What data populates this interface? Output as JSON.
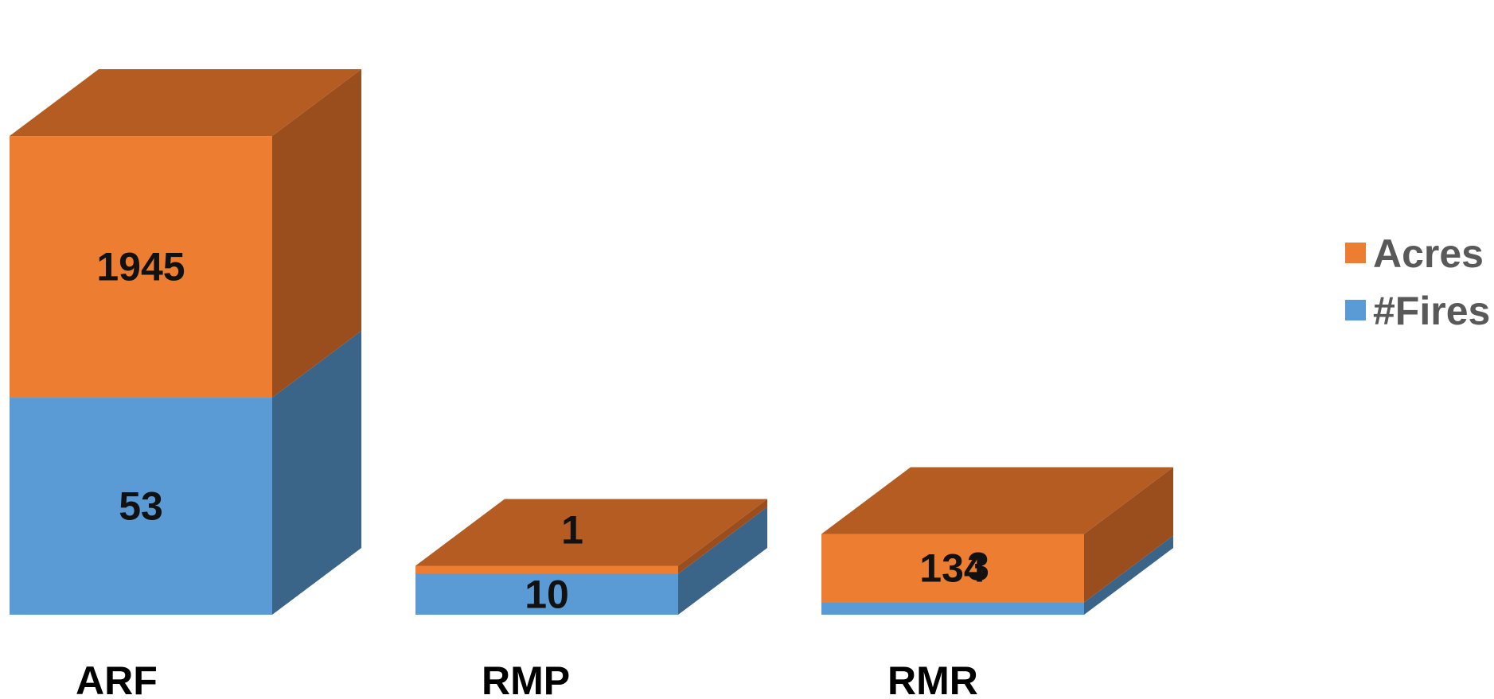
{
  "chart_data": {
    "type": "bar",
    "stacked": true,
    "three_d": true,
    "categories": [
      "ARF",
      "RMP",
      "RMR"
    ],
    "series": [
      {
        "name": "#Fires",
        "values": [
          53,
          10,
          3
        ],
        "labels": [
          "53",
          "10",
          "3"
        ],
        "color": "#5B9BD5",
        "side_color": "#3B6489",
        "top_color": "#4A7FB0"
      },
      {
        "name": "Acres",
        "values": [
          1945,
          1,
          134
        ],
        "labels": [
          "1945",
          "1",
          "134"
        ],
        "color": "#ED7D31",
        "side_color": "#9A4E1E",
        "top_color": "#B45C22"
      }
    ],
    "legend": {
      "position": "right",
      "order": [
        "Acres",
        "#Fires"
      ]
    },
    "grid": false,
    "value_axis_visible": false
  }
}
